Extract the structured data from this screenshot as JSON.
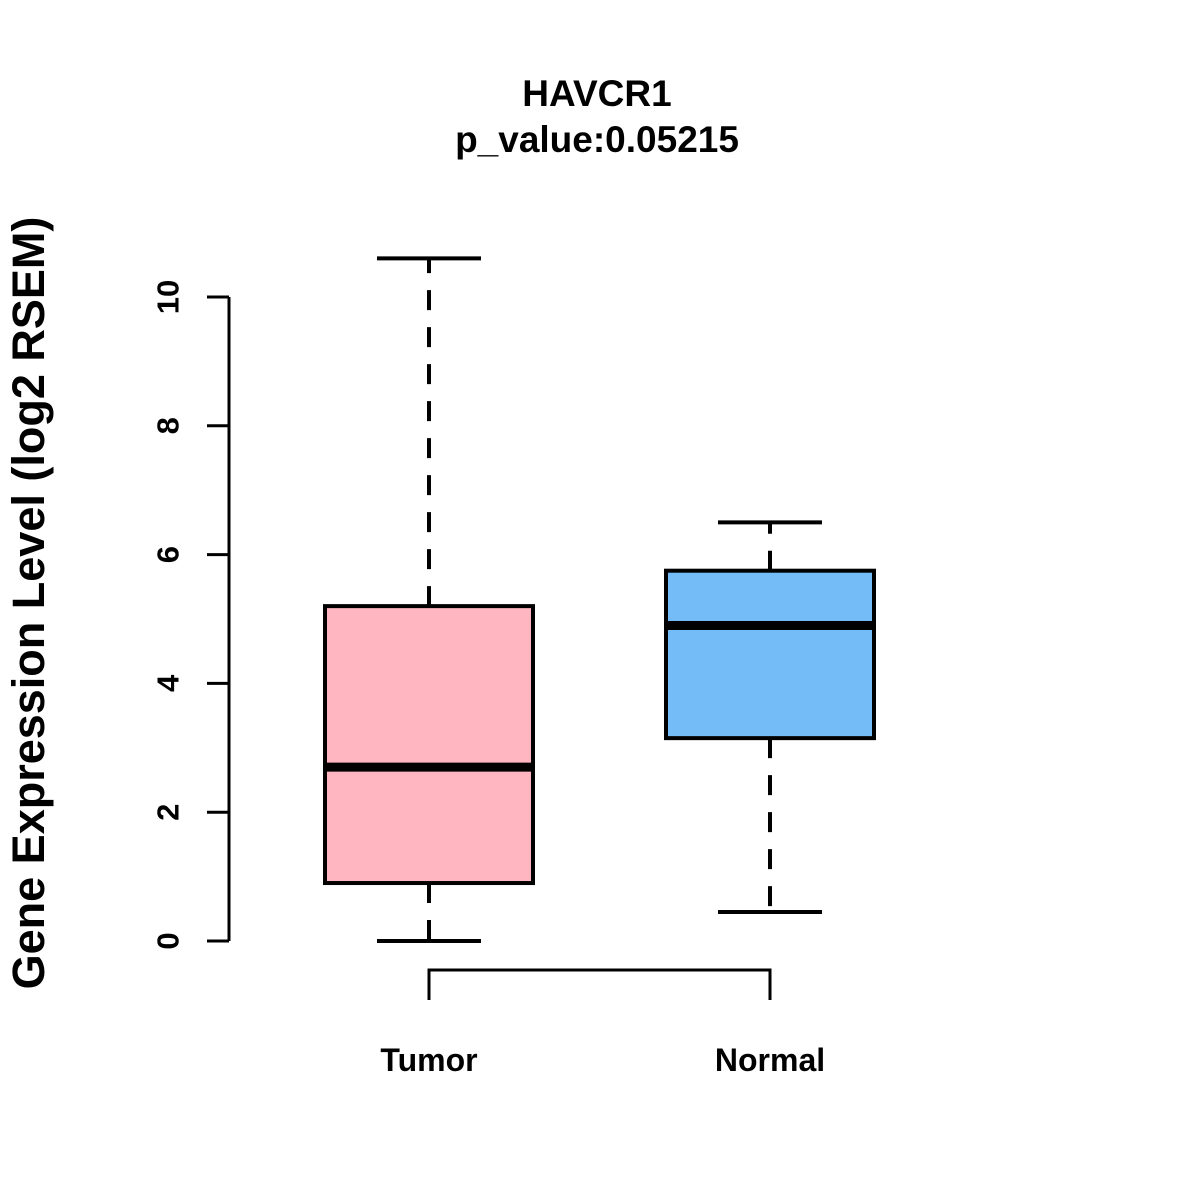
{
  "chart_data": {
    "type": "boxplot",
    "title": "HAVCR1",
    "subtitle": "p_value:0.05215",
    "gene": "HAVCR1",
    "p_value": 0.05215,
    "ylabel": "Gene Expression Level (log2 RSEM)",
    "xlabel": "",
    "ylim": [
      0,
      10
    ],
    "yticks": [
      0,
      2,
      4,
      6,
      8,
      10
    ],
    "grid": false,
    "legend": "none",
    "categories": [
      "Tumor",
      "Normal"
    ],
    "series": [
      {
        "name": "Tumor",
        "color": "#FFB6C1",
        "min": 0.0,
        "q1": 0.9,
        "median": 2.7,
        "q3": 5.2,
        "max": 10.6
      },
      {
        "name": "Normal",
        "color": "#74BCF8",
        "min": 0.45,
        "q1": 3.15,
        "median": 4.9,
        "q3": 5.75,
        "max": 6.5
      }
    ],
    "colors": {
      "foreground": "#000000",
      "background": "#ffffff",
      "tumor_fill": "#FFB6C1",
      "normal_fill": "#74BCF8"
    }
  }
}
